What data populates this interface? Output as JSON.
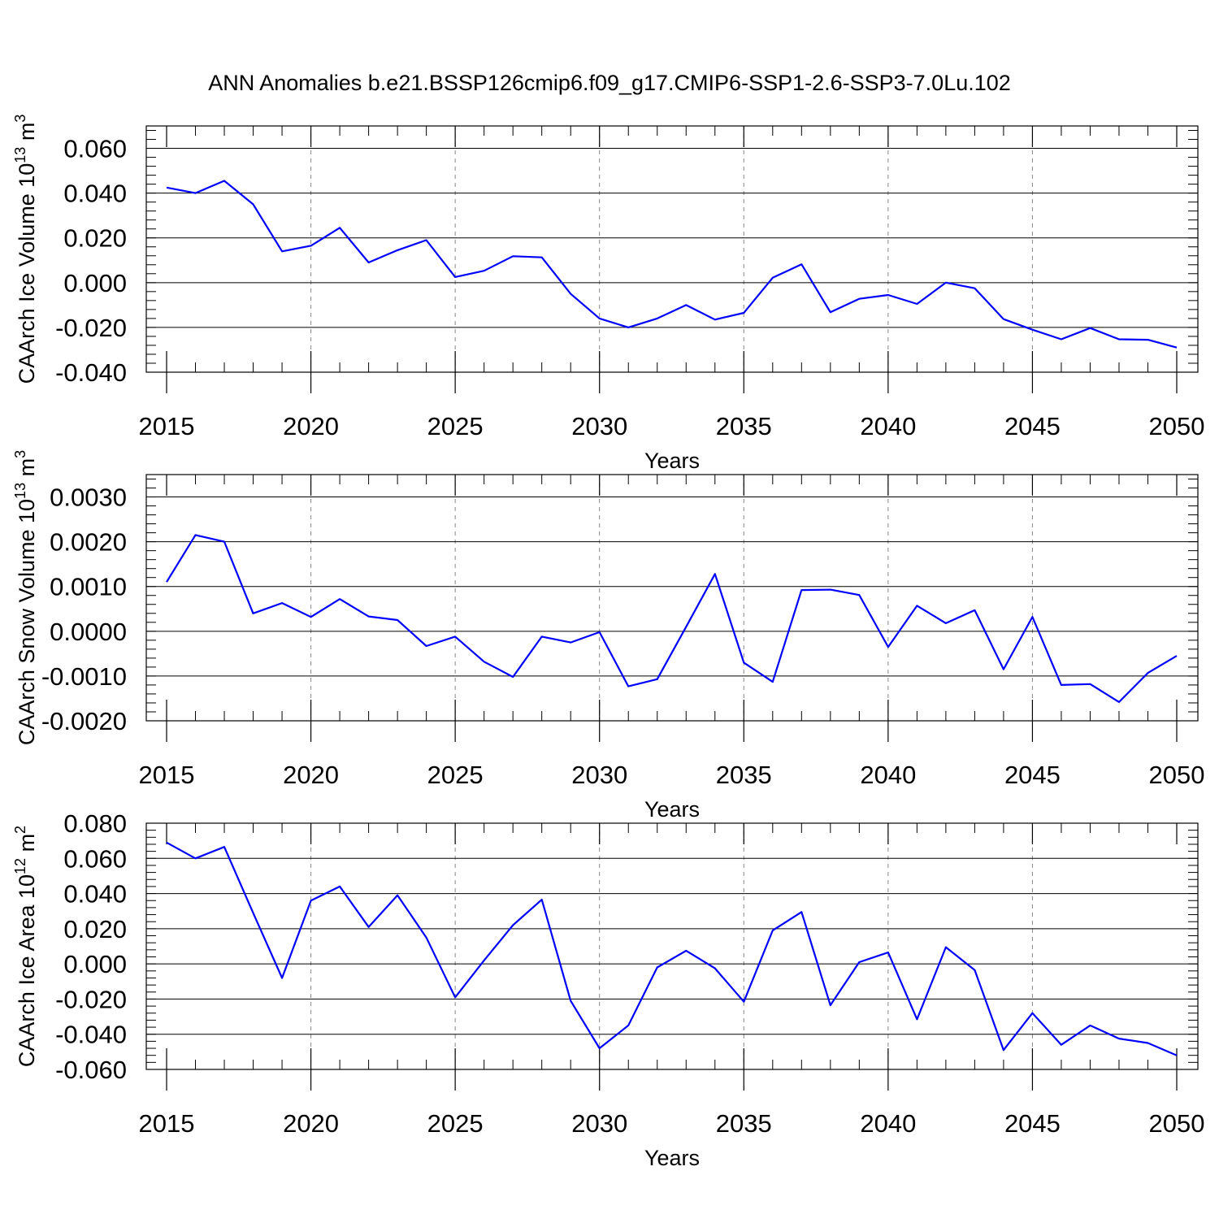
{
  "title": "ANN Anomalies b.e21.BSSP126cmip6.f09_g17.CMIP6-SSP1-2.6-SSP3-7.0Lu.102",
  "chart_data": [
    {
      "type": "line",
      "ylabel": "CAArch Ice Volume 10",
      "ylabel_exp": "13",
      "ylabel_unit": " m",
      "ylabel_unit_exp": "3",
      "xlabel": "Years",
      "xlim": [
        2015,
        2050
      ],
      "ylim": [
        -0.04,
        0.07
      ],
      "yticks": [
        -0.04,
        -0.02,
        0.0,
        0.02,
        0.04,
        0.06
      ],
      "ytick_labels": [
        "-0.040",
        "-0.020",
        "0.000",
        "0.020",
        "0.040",
        "0.060"
      ],
      "xticks": [
        2015,
        2020,
        2025,
        2030,
        2035,
        2040,
        2045,
        2050
      ],
      "xtick_labels": [
        "2015",
        "2020",
        "2025",
        "2030",
        "2035",
        "2040",
        "2045",
        "2050"
      ],
      "line_color": "#0000ff",
      "x": [
        2015,
        2016,
        2017,
        2018,
        2019,
        2020,
        2021,
        2022,
        2023,
        2024,
        2025,
        2026,
        2027,
        2028,
        2029,
        2030,
        2031,
        2032,
        2033,
        2034,
        2035,
        2036,
        2037,
        2038,
        2039,
        2040,
        2041,
        2042,
        2043,
        2044,
        2045,
        2046,
        2047,
        2048,
        2049,
        2050
      ],
      "values": [
        0.0425,
        0.04,
        0.0455,
        0.035,
        0.014,
        0.0165,
        0.0245,
        0.009,
        0.0145,
        0.019,
        0.0025,
        0.0053,
        0.0118,
        0.0113,
        -0.005,
        -0.016,
        -0.02,
        -0.016,
        -0.01,
        -0.0165,
        -0.0135,
        0.0022,
        0.0082,
        -0.0132,
        -0.0072,
        -0.0055,
        -0.0095,
        0.0,
        -0.0025,
        -0.0163,
        -0.021,
        -0.0253,
        -0.0203,
        -0.0253,
        -0.0255,
        -0.029
      ]
    },
    {
      "type": "line",
      "ylabel": "CAArch Snow Volume 10",
      "ylabel_exp": "13",
      "ylabel_unit": " m",
      "ylabel_unit_exp": "3",
      "xlabel": "Years",
      "xlim": [
        2015,
        2050
      ],
      "ylim": [
        -0.002,
        0.0035
      ],
      "yticks": [
        -0.002,
        -0.001,
        0.0,
        0.001,
        0.002,
        0.003
      ],
      "ytick_labels": [
        "-0.0020",
        "-0.0010",
        "0.0000",
        "0.0010",
        "0.0020",
        "0.0030"
      ],
      "xticks": [
        2015,
        2020,
        2025,
        2030,
        2035,
        2040,
        2045,
        2050
      ],
      "xtick_labels": [
        "2015",
        "2020",
        "2025",
        "2030",
        "2035",
        "2040",
        "2045",
        "2050"
      ],
      "line_color": "#0000ff",
      "x": [
        2015,
        2016,
        2017,
        2018,
        2019,
        2020,
        2021,
        2022,
        2023,
        2024,
        2025,
        2026,
        2027,
        2028,
        2029,
        2030,
        2031,
        2032,
        2033,
        2034,
        2035,
        2036,
        2037,
        2038,
        2039,
        2040,
        2041,
        2042,
        2043,
        2044,
        2045,
        2046,
        2047,
        2048,
        2049,
        2050
      ],
      "values": [
        0.0011,
        0.00215,
        0.002,
        0.0004,
        0.00063,
        0.00032,
        0.00072,
        0.00033,
        0.00025,
        -0.00033,
        -0.00012,
        -0.00068,
        -0.00102,
        -0.00012,
        -0.00025,
        -2e-05,
        -0.00123,
        -0.00107,
        0.0001,
        0.00128,
        -0.0007,
        -0.00113,
        0.00092,
        0.00093,
        0.00081,
        -0.00035,
        0.00057,
        0.00018,
        0.00047,
        -0.00085,
        0.00032,
        -0.0012,
        -0.00118,
        -0.00158,
        -0.00093,
        -0.00055
      ]
    },
    {
      "type": "line",
      "ylabel": "CAArch Ice Area 10",
      "ylabel_exp": "12",
      "ylabel_unit": " m",
      "ylabel_unit_exp": "2",
      "xlabel": "Years",
      "xlim": [
        2015,
        2050
      ],
      "ylim": [
        -0.06,
        0.08
      ],
      "yticks": [
        -0.06,
        -0.04,
        -0.02,
        0.0,
        0.02,
        0.04,
        0.06,
        0.08
      ],
      "ytick_labels": [
        "-0.060",
        "-0.040",
        "-0.020",
        "0.000",
        "0.020",
        "0.040",
        "0.060",
        "0.080"
      ],
      "xticks": [
        2015,
        2020,
        2025,
        2030,
        2035,
        2040,
        2045,
        2050
      ],
      "xtick_labels": [
        "2015",
        "2020",
        "2025",
        "2030",
        "2035",
        "2040",
        "2045",
        "2050"
      ],
      "line_color": "#0000ff",
      "x": [
        2015,
        2016,
        2017,
        2018,
        2019,
        2020,
        2021,
        2022,
        2023,
        2024,
        2025,
        2026,
        2027,
        2028,
        2029,
        2030,
        2031,
        2032,
        2033,
        2034,
        2035,
        2036,
        2037,
        2038,
        2039,
        2040,
        2041,
        2042,
        2043,
        2044,
        2045,
        2046,
        2047,
        2048,
        2049,
        2050
      ],
      "values": [
        0.069,
        0.06,
        0.0665,
        0.029,
        -0.008,
        0.036,
        0.044,
        0.021,
        0.039,
        0.015,
        -0.019,
        0.002,
        0.022,
        0.0365,
        -0.021,
        -0.048,
        -0.035,
        -0.002,
        0.0075,
        -0.0025,
        -0.0215,
        0.019,
        0.0295,
        -0.0235,
        0.001,
        0.0065,
        -0.0315,
        0.0095,
        -0.0035,
        -0.049,
        -0.028,
        -0.046,
        -0.035,
        -0.0425,
        -0.045,
        -0.052
      ]
    }
  ]
}
